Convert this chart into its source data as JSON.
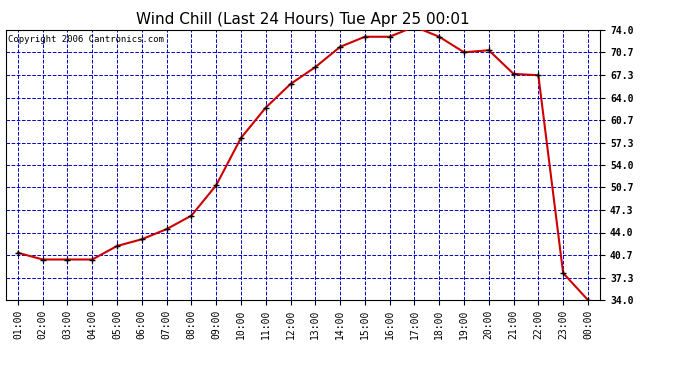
{
  "title": "Wind Chill (Last 24 Hours) Tue Apr 25 00:01",
  "copyright": "Copyright 2006 Cantronics.com",
  "x_labels": [
    "01:00",
    "02:00",
    "03:00",
    "04:00",
    "05:00",
    "06:00",
    "07:00",
    "08:00",
    "09:00",
    "10:00",
    "11:00",
    "12:00",
    "13:00",
    "14:00",
    "15:00",
    "16:00",
    "17:00",
    "18:00",
    "19:00",
    "20:00",
    "21:00",
    "22:00",
    "23:00",
    "00:00"
  ],
  "y_values": [
    41.0,
    40.0,
    40.0,
    40.0,
    42.0,
    43.0,
    44.5,
    46.5,
    51.0,
    58.0,
    62.5,
    66.0,
    68.5,
    71.5,
    73.0,
    73.0,
    74.5,
    73.0,
    70.7,
    71.0,
    67.5,
    67.3,
    38.0,
    34.0
  ],
  "ylim_min": 34.0,
  "ylim_max": 74.0,
  "y_ticks": [
    34.0,
    37.3,
    40.7,
    44.0,
    47.3,
    50.7,
    54.0,
    57.3,
    60.7,
    64.0,
    67.3,
    70.7,
    74.0
  ],
  "line_color": "#cc0000",
  "marker_color": "#000000",
  "bg_color": "#ffffff",
  "plot_bg_color": "#ffffff",
  "grid_color": "#0000cc",
  "title_color": "#000000",
  "title_fontsize": 11,
  "copyright_fontsize": 6.5,
  "tick_fontsize": 7,
  "copyright_text": "Copyright 2006 Cantronics.com"
}
